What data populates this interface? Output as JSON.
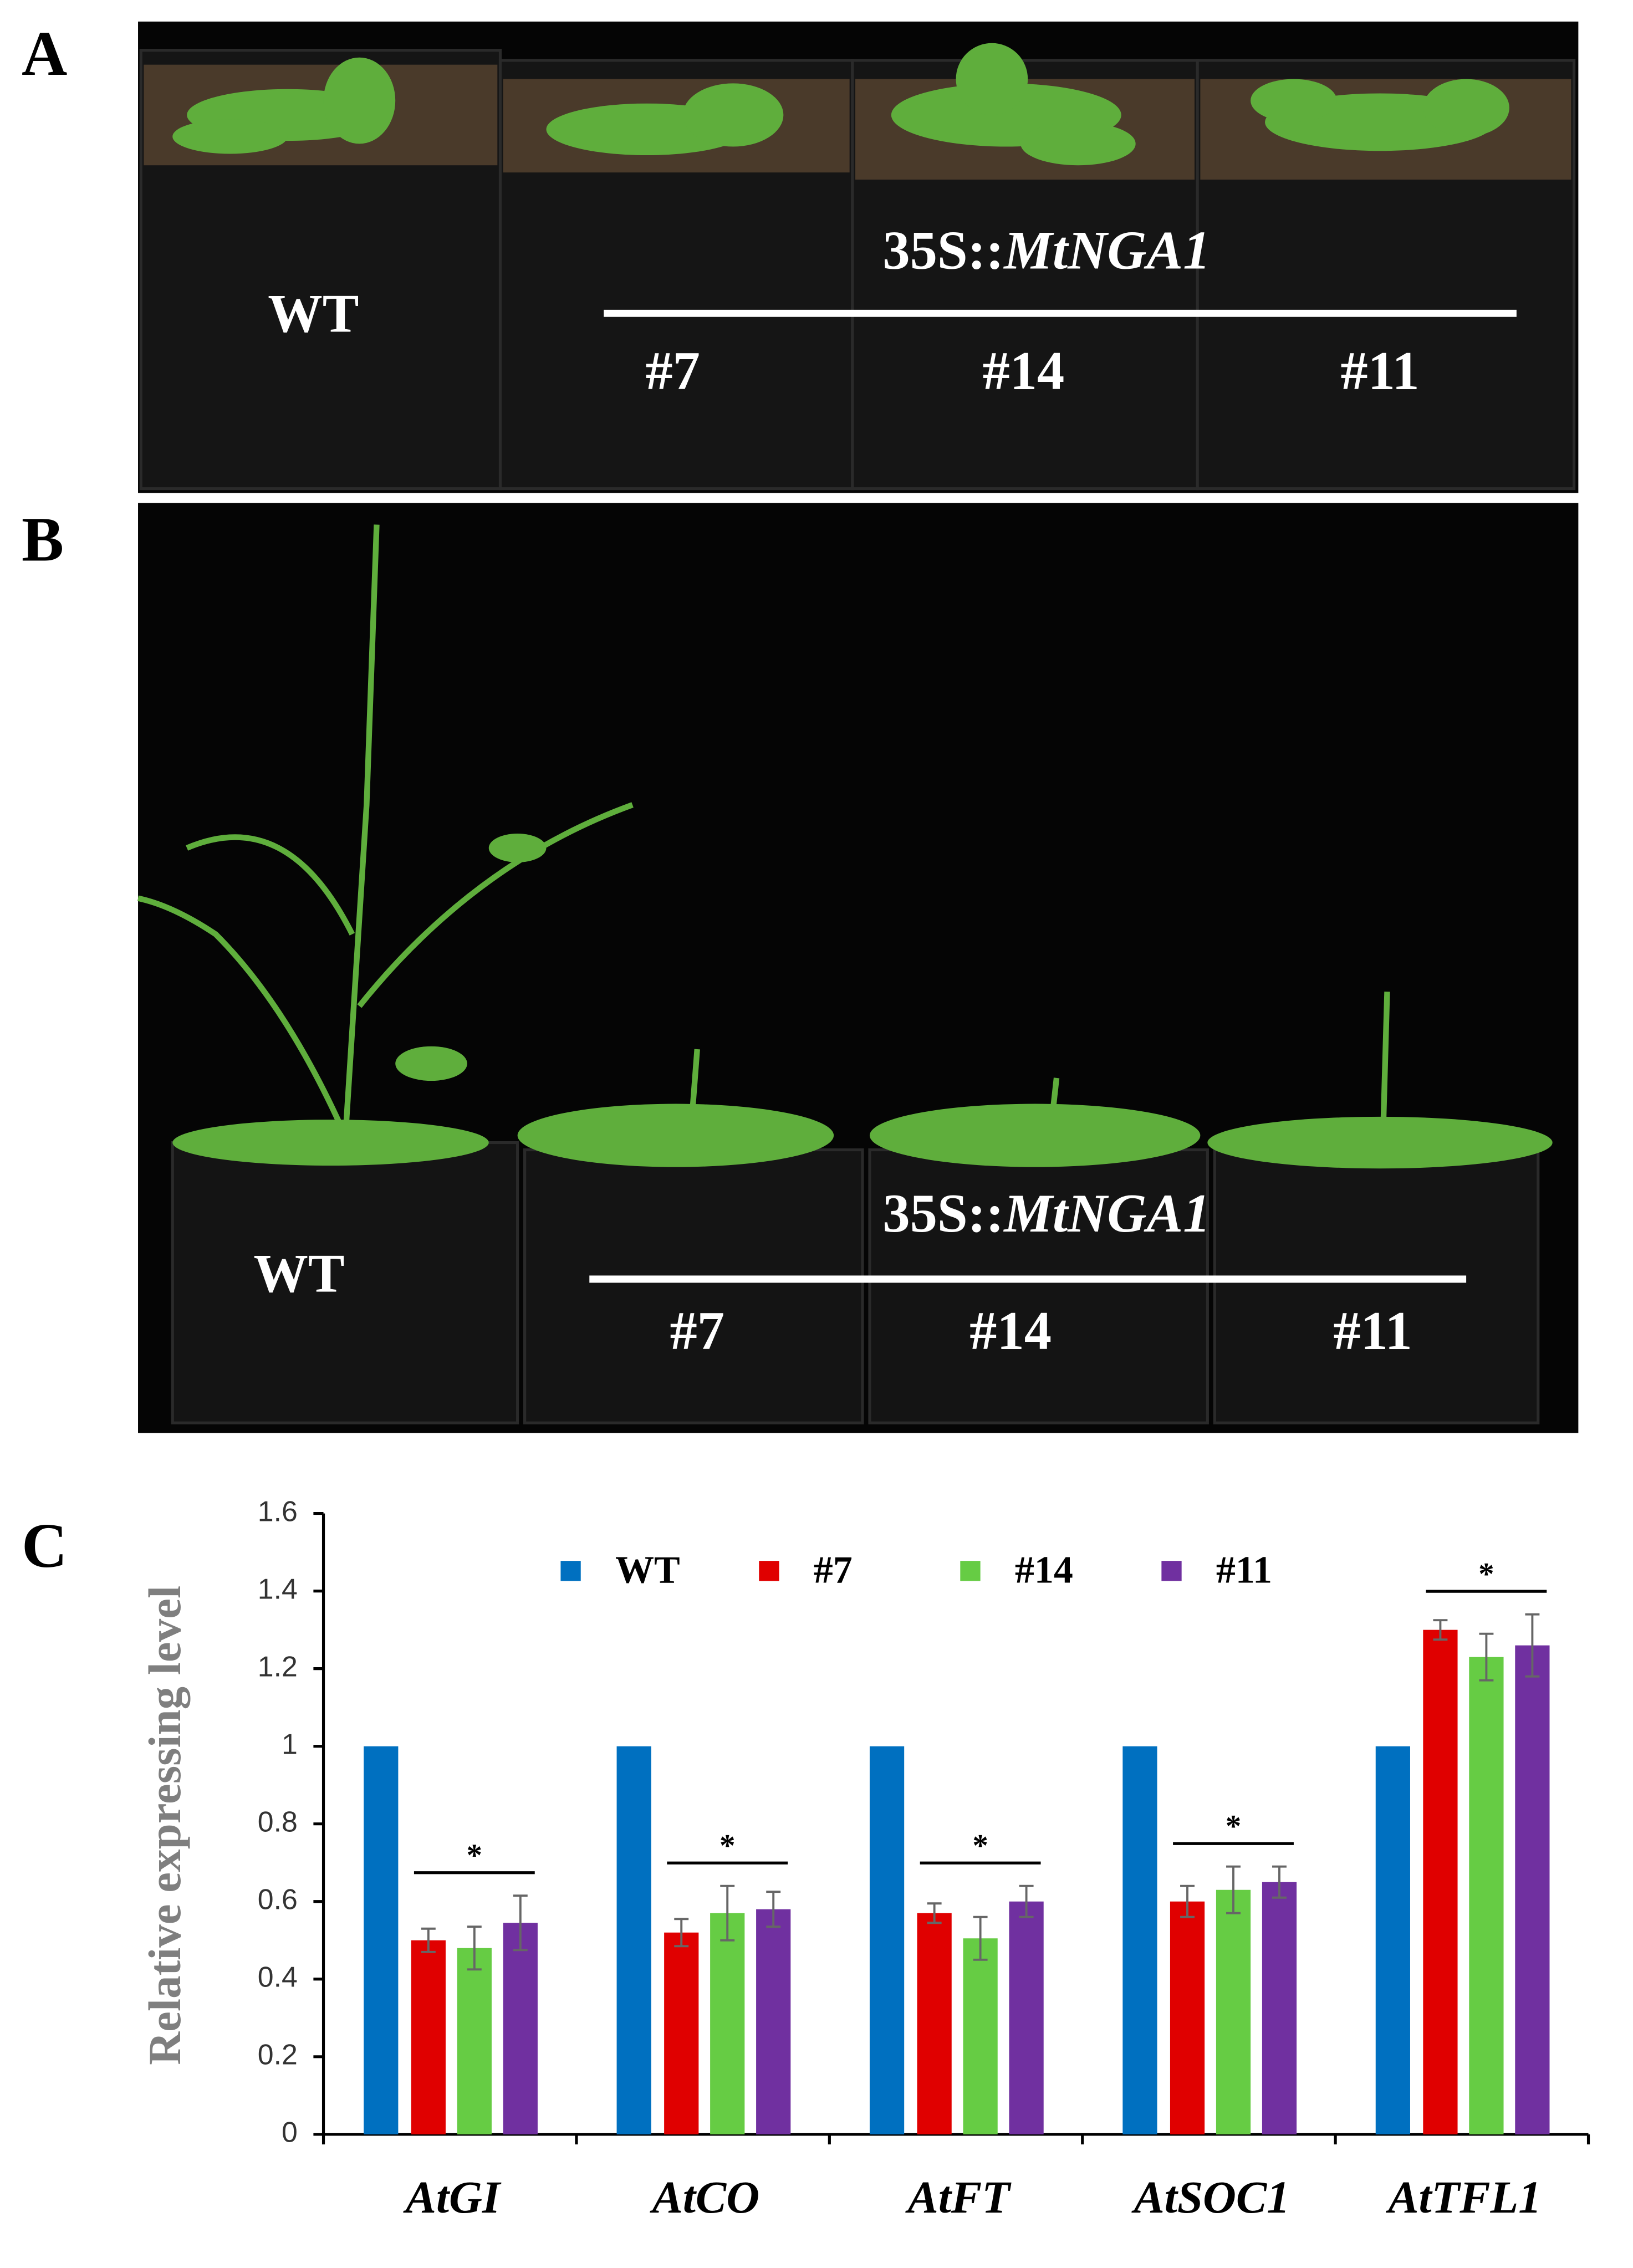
{
  "figure_labels": [
    "A",
    "B",
    "C"
  ],
  "panel_a": {
    "wt": "WT",
    "construct_prefix": "35S::",
    "construct_gene": "MtNGA1",
    "lines": [
      "#7",
      "#14",
      "#11"
    ]
  },
  "panel_b": {
    "wt": "WT",
    "construct_prefix": "35S::",
    "construct_gene": "MtNGA1",
    "lines": [
      "#7",
      "#14",
      "#11"
    ]
  },
  "chart_data": {
    "type": "bar",
    "y_label": "Relative expressing level",
    "categories": [
      "AtGI",
      "AtCO",
      "AtFT",
      "AtSOC1",
      "AtTFL1"
    ],
    "series": [
      {
        "name": "WT",
        "color": "#0070c0",
        "values": [
          1,
          1,
          1,
          1,
          1
        ]
      },
      {
        "name": "#7",
        "color": "#e00000",
        "values": [
          0.5,
          0.52,
          0.57,
          0.6,
          1.3
        ],
        "errors": [
          0.03,
          0.035,
          0.025,
          0.04,
          0.025
        ]
      },
      {
        "name": "#14",
        "color": "#66cc44",
        "values": [
          0.48,
          0.57,
          0.505,
          0.63,
          1.23
        ],
        "errors": [
          0.055,
          0.07,
          0.055,
          0.06,
          0.06
        ]
      },
      {
        "name": "#11",
        "color": "#7030a0",
        "values": [
          0.545,
          0.58,
          0.6,
          0.65,
          1.26
        ],
        "errors": [
          0.07,
          0.045,
          0.04,
          0.04,
          0.08
        ]
      }
    ],
    "annotations": [
      "*",
      "*",
      "*",
      "*",
      "*"
    ],
    "ylim": [
      0,
      1.6
    ],
    "yticks": [
      0,
      0.2,
      0.4,
      0.6,
      0.8,
      1,
      1.2,
      1.4,
      1.6
    ]
  }
}
